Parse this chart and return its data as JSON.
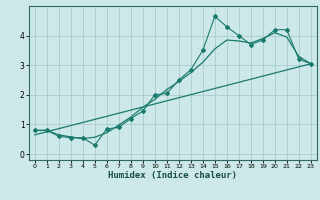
{
  "xlabel": "Humidex (Indice chaleur)",
  "bg_color": "#cce8e8",
  "line_color": "#1a7a6e",
  "grid_color": "#aacccc",
  "data_x": [
    0,
    1,
    2,
    3,
    4,
    5,
    6,
    7,
    8,
    9,
    10,
    11,
    12,
    13,
    14,
    15,
    16,
    17,
    18,
    19,
    20,
    21,
    22,
    23
  ],
  "data_y": [
    0.8,
    0.8,
    0.6,
    0.55,
    0.55,
    0.3,
    0.85,
    0.9,
    1.2,
    1.45,
    2.0,
    2.05,
    2.5,
    2.85,
    3.5,
    4.65,
    4.3,
    4.0,
    3.7,
    3.85,
    4.2,
    4.2,
    3.2,
    3.05
  ],
  "smooth_x": [
    0,
    1,
    2,
    3,
    4,
    5,
    6,
    7,
    8,
    9,
    10,
    11,
    12,
    13,
    14,
    15,
    16,
    17,
    18,
    19,
    20,
    21,
    22,
    23
  ],
  "smooth_y": [
    0.8,
    0.8,
    0.65,
    0.58,
    0.52,
    0.57,
    0.72,
    0.98,
    1.25,
    1.58,
    1.85,
    2.18,
    2.45,
    2.75,
    3.1,
    3.55,
    3.85,
    3.82,
    3.75,
    3.9,
    4.1,
    3.95,
    3.3,
    3.05
  ],
  "trend_x": [
    0,
    23
  ],
  "trend_y": [
    0.65,
    3.05
  ],
  "xlim": [
    -0.5,
    23.5
  ],
  "ylim": [
    -0.2,
    5.0
  ],
  "xticks": [
    0,
    1,
    2,
    3,
    4,
    5,
    6,
    7,
    8,
    9,
    10,
    11,
    12,
    13,
    14,
    15,
    16,
    17,
    18,
    19,
    20,
    21,
    22,
    23
  ],
  "yticks": [
    0,
    1,
    2,
    3,
    4
  ],
  "figsize": [
    3.2,
    2.0
  ],
  "dpi": 100
}
